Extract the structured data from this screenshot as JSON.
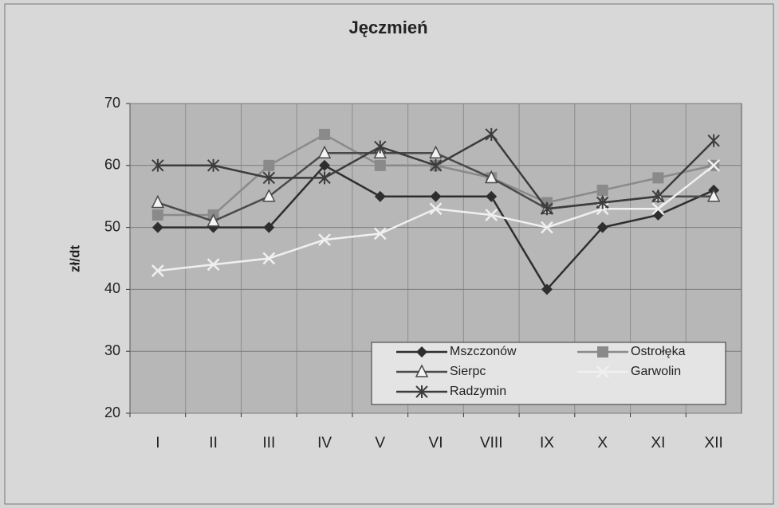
{
  "chart_data": {
    "type": "line",
    "title": "Jęczmień",
    "y_label": "zł/dt",
    "categories": [
      "I",
      "II",
      "III",
      "IV",
      "V",
      "VI",
      "VIII",
      "IX",
      "X",
      "XI",
      "XII"
    ],
    "series": [
      {
        "name": "Mszczonów",
        "color": "#2e2e2e",
        "marker": "diamond",
        "values": [
          50,
          50,
          50,
          60,
          55,
          55,
          55,
          40,
          50,
          52,
          56
        ]
      },
      {
        "name": "Ostrołęka",
        "color": "#8a8a8a",
        "marker": "square",
        "values": [
          52,
          52,
          60,
          65,
          60,
          60,
          58,
          54,
          56,
          58,
          60
        ]
      },
      {
        "name": "Sierpc",
        "color": "#4a4a4a",
        "marker": "triangle",
        "values": [
          54,
          51,
          55,
          62,
          62,
          62,
          58,
          53,
          54,
          55,
          55
        ]
      },
      {
        "name": "Garwolin",
        "color": "#f0f0f0",
        "marker": "x",
        "values": [
          43,
          44,
          45,
          48,
          49,
          53,
          52,
          50,
          53,
          53,
          60
        ]
      },
      {
        "name": "Radzymin",
        "color": "#3c3c3c",
        "marker": "asterisk",
        "values": [
          60,
          60,
          58,
          58,
          63,
          60,
          65,
          53,
          54,
          55,
          64
        ]
      }
    ],
    "ylim": [
      20,
      70
    ],
    "yticks": [
      20,
      30,
      40,
      50,
      60,
      70
    ],
    "grid": true,
    "legend": "lower right"
  }
}
